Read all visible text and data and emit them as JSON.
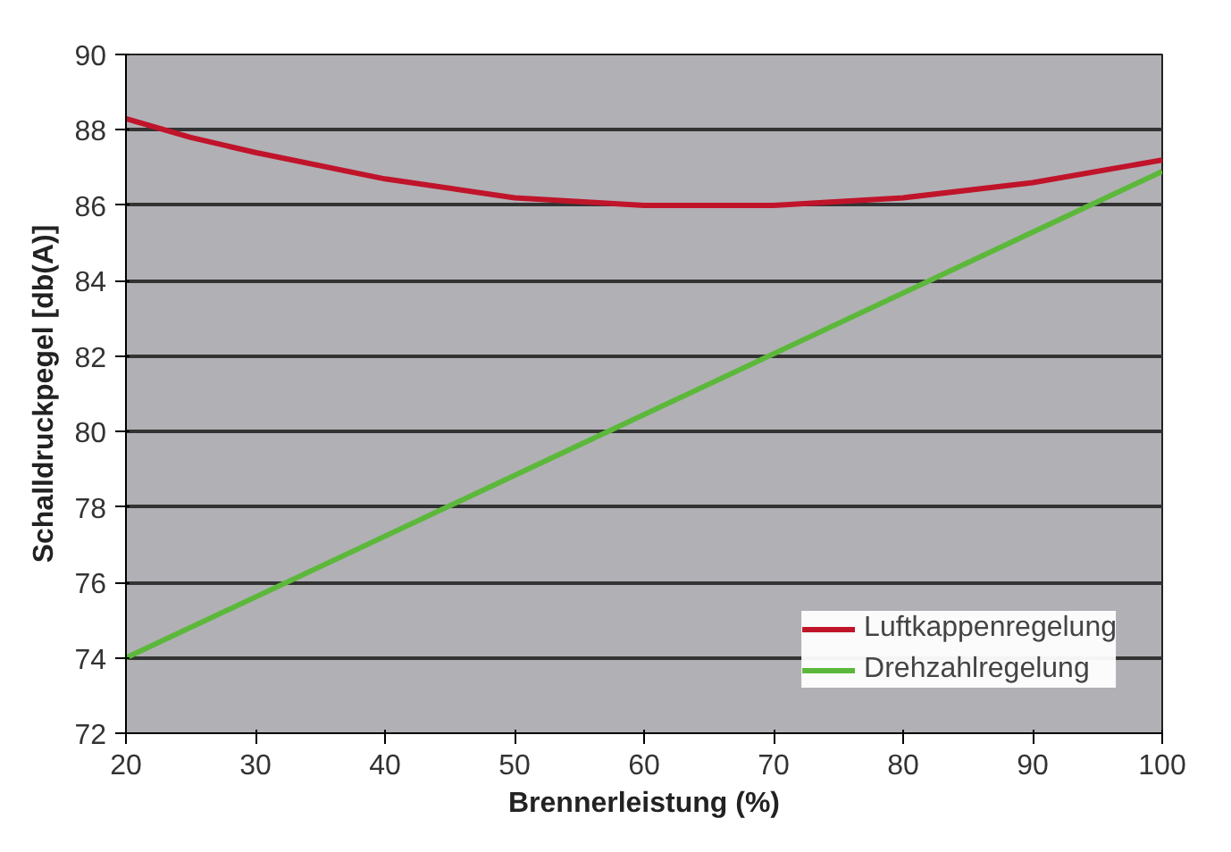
{
  "chart_data": {
    "type": "line",
    "xlabel": "Brennerleistung (%)",
    "ylabel": "Schalldruckpegel [db(A)]",
    "xlim": [
      20,
      100
    ],
    "xticks": [
      20,
      30,
      40,
      50,
      60,
      70,
      80,
      90,
      100
    ],
    "ylim": [
      72,
      90
    ],
    "yticks": [
      72,
      74,
      76,
      78,
      80,
      82,
      84,
      86,
      88,
      90
    ],
    "grid": "y",
    "legend": "bottom right",
    "line_style": "solid",
    "marker": "none",
    "series": [
      {
        "name": "Luftkappenregelung",
        "color": "#c0142a",
        "x": [
          20,
          25,
          30,
          40,
          50,
          60,
          65,
          70,
          80,
          90,
          100
        ],
        "values": [
          88.3,
          87.8,
          87.4,
          86.7,
          86.2,
          86.0,
          86.0,
          86.0,
          86.2,
          86.6,
          87.2
        ]
      },
      {
        "name": "Drehzahlregelung",
        "color": "#5cb83a",
        "x": [
          20,
          100
        ],
        "values": [
          74.0,
          86.9
        ]
      }
    ]
  }
}
